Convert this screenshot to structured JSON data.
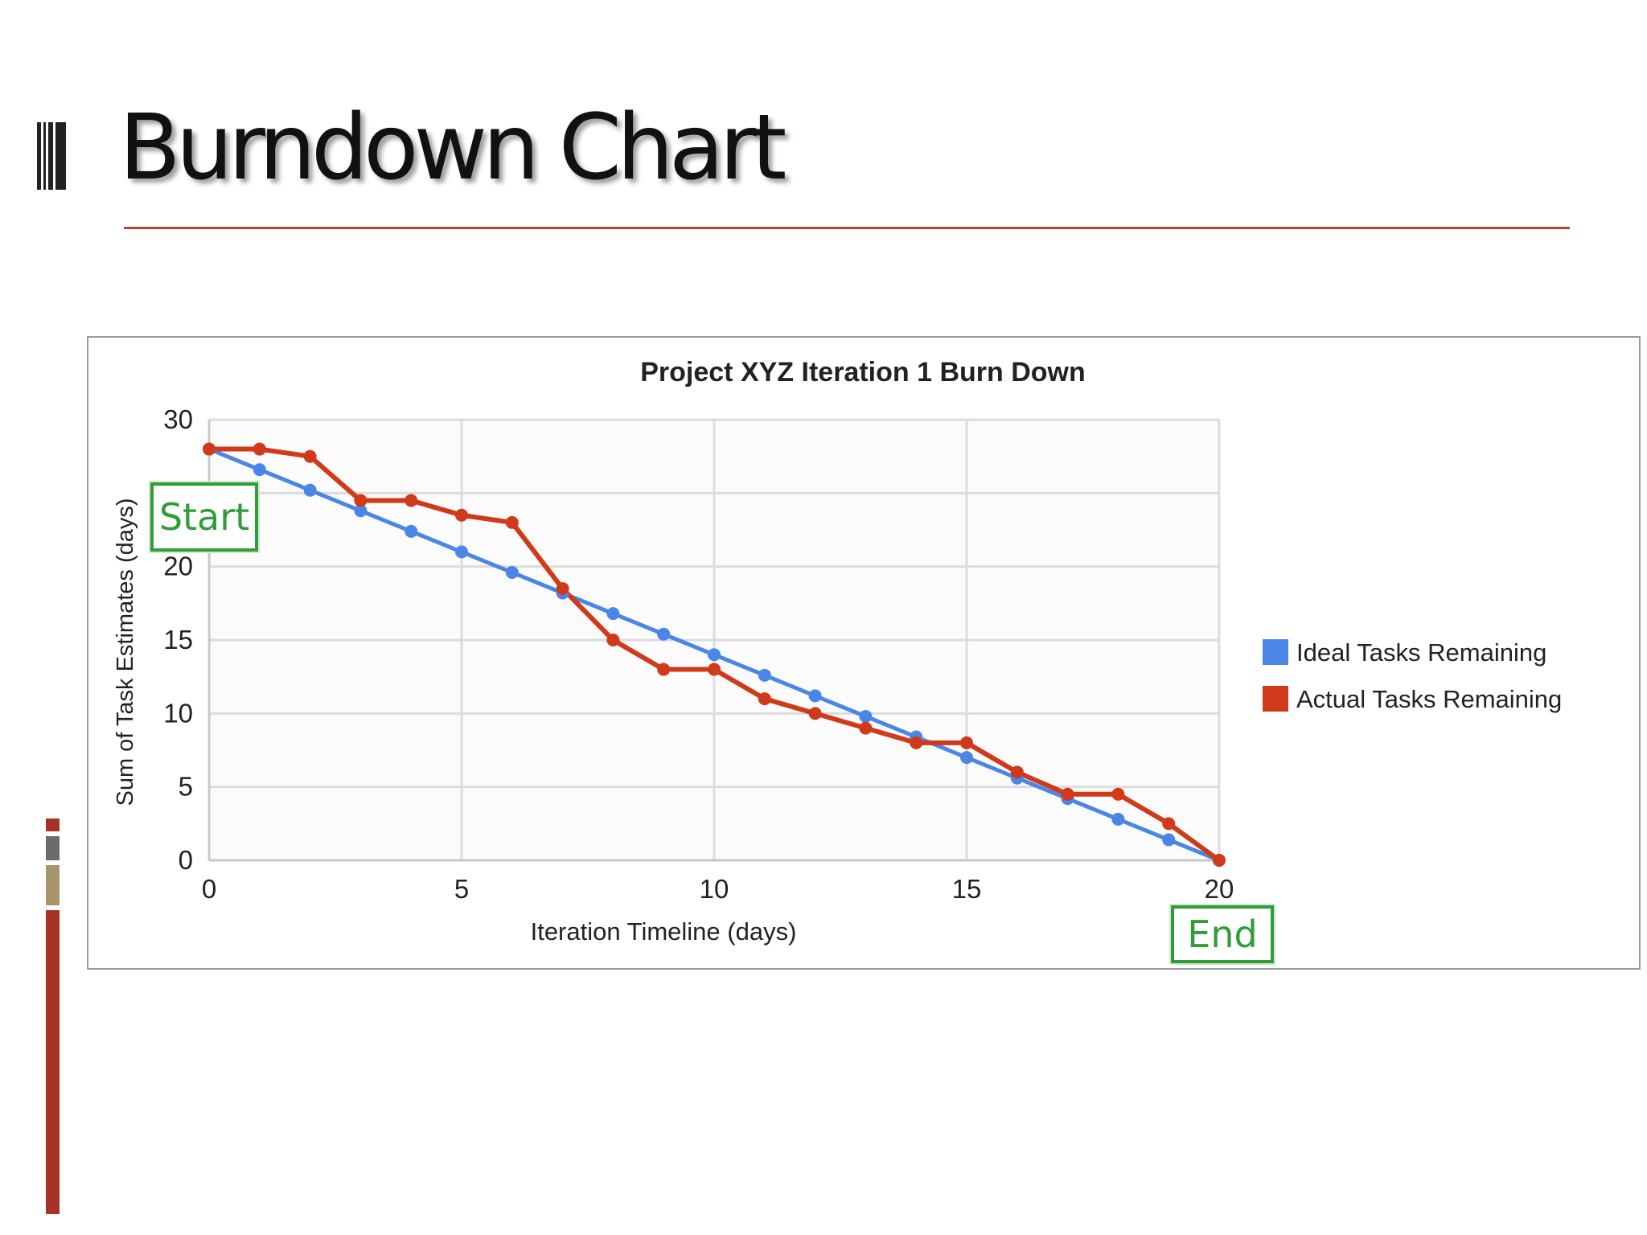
{
  "slide": {
    "title": "Burndown Chart",
    "accent_color": "#b5482b"
  },
  "chart_data": {
    "type": "line",
    "title": "Project XYZ Iteration 1 Burn Down",
    "xlabel": "Iteration Timeline (days)",
    "ylabel": "Sum of Task Estimates (days)",
    "xlim": [
      0,
      20
    ],
    "ylim": [
      0,
      30
    ],
    "xticks": [
      0,
      5,
      10,
      15,
      20
    ],
    "yticks": [
      0,
      5,
      10,
      15,
      20,
      25,
      30
    ],
    "grid": true,
    "legend_position": "right",
    "series": [
      {
        "name": "Ideal Tasks Remaining",
        "color": "#4a86e8",
        "x": [
          0,
          1,
          2,
          3,
          4,
          5,
          6,
          7,
          8,
          9,
          10,
          11,
          12,
          13,
          14,
          15,
          16,
          17,
          18,
          19,
          20
        ],
        "y": [
          28,
          26.6,
          25.2,
          23.8,
          22.4,
          21,
          19.6,
          18.2,
          16.8,
          15.4,
          14,
          12.6,
          11.2,
          9.8,
          8.4,
          7,
          5.6,
          4.2,
          2.8,
          1.4,
          0
        ]
      },
      {
        "name": "Actual Tasks Remaining",
        "color": "#d03a1a",
        "x": [
          0,
          1,
          2,
          3,
          4,
          5,
          6,
          7,
          8,
          9,
          10,
          11,
          12,
          13,
          14,
          15,
          16,
          17,
          18,
          19,
          20
        ],
        "y": [
          28,
          28,
          27.5,
          24.5,
          24.5,
          23.5,
          23,
          18.5,
          15,
          13,
          13,
          11,
          10,
          9,
          8,
          8,
          6,
          4.5,
          4.5,
          2.5,
          0
        ]
      }
    ],
    "annotations": [
      {
        "text": "Start",
        "color": "#2e9d3a"
      },
      {
        "text": "End",
        "color": "#2e9d3a"
      }
    ]
  }
}
